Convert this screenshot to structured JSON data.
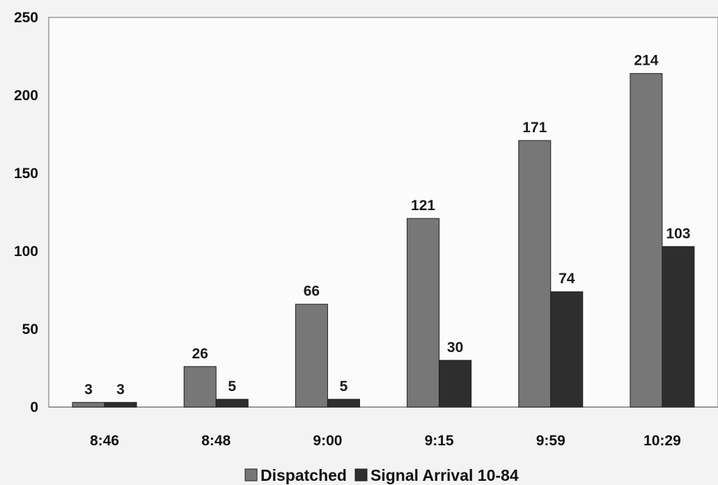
{
  "chart_data": {
    "type": "bar",
    "title": "",
    "xlabel": "",
    "ylabel": "",
    "categories": [
      "8:46",
      "8:48",
      "9:00",
      "9:15",
      "9:59",
      "10:29"
    ],
    "series": [
      {
        "name": "Dispatched",
        "values": [
          3,
          26,
          66,
          121,
          171,
          214
        ],
        "color": "#777777"
      },
      {
        "name": "Signal Arrival 10-84",
        "values": [
          3,
          5,
          5,
          30,
          74,
          103
        ],
        "color": "#2e2e2e"
      }
    ],
    "ylim": [
      0,
      250
    ],
    "yticks": [
      "0",
      "50",
      "100",
      "150",
      "200",
      "250"
    ],
    "grid": false,
    "legend": "bottom"
  }
}
